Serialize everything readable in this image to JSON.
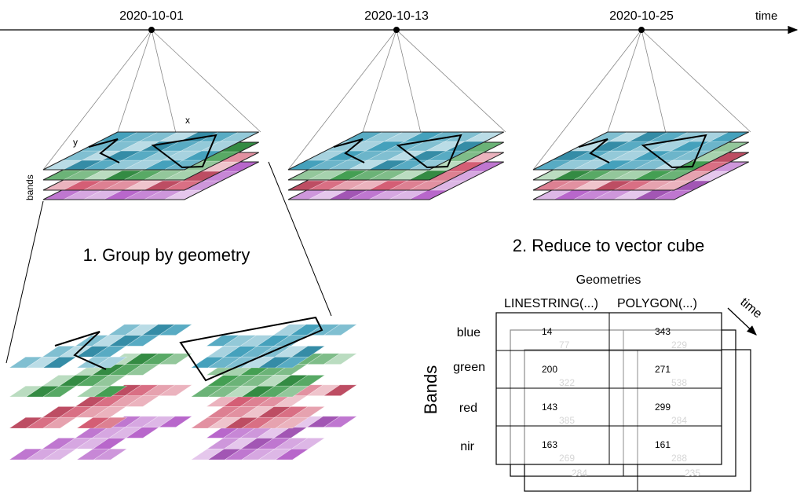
{
  "timeline": {
    "axis_label": "time",
    "dates": [
      "2020-10-01",
      "2020-10-13",
      "2020-10-25"
    ]
  },
  "axes": {
    "x_label": "x",
    "y_label": "y",
    "bands_label": "bands"
  },
  "steps": {
    "group": "1. Group by geometry",
    "reduce": "2. Reduce to vector cube"
  },
  "vector_cube": {
    "geometries_label": "Geometries",
    "bands_label": "Bands",
    "time_label": "time",
    "columns": [
      "LINESTRING(...)",
      "POLYGON(...)"
    ],
    "rows": [
      "blue",
      "green",
      "red",
      "nir"
    ],
    "front_values": [
      [
        "14",
        "343"
      ],
      [
        "200",
        "271"
      ],
      [
        "143",
        "299"
      ],
      [
        "163",
        "161"
      ]
    ],
    "middle_values": [
      [
        "77",
        "229"
      ],
      [
        "322",
        "538"
      ],
      [
        "385",
        "284"
      ],
      [
        "269",
        "288"
      ]
    ],
    "back_values": [
      [
        "284",
        "235"
      ]
    ]
  },
  "colors": {
    "blue": "#3b9cb8",
    "green": "#3a9a4a",
    "red": "#d2566e",
    "purple": "#b45fc8"
  }
}
